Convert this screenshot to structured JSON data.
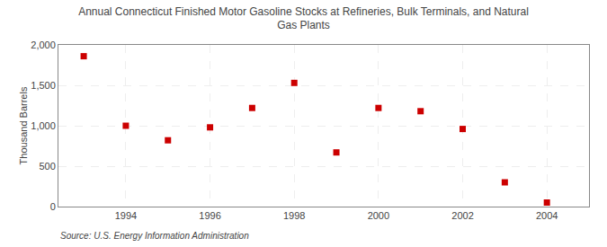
{
  "chart_data": {
    "type": "scatter",
    "title": "Annual Connecticut Finished Motor Gasoline Stocks at Refineries, Bulk Terminals, and Natural\nGas Plants",
    "ylabel": "Thousand Barrels",
    "source": "Source: U.S. Energy Information Administration",
    "x": [
      1993,
      1994,
      1995,
      1996,
      1997,
      1998,
      1999,
      2000,
      2001,
      2002,
      2003,
      2004
    ],
    "values": [
      1860,
      1000,
      820,
      980,
      1220,
      1530,
      670,
      1220,
      1180,
      960,
      300,
      50
    ],
    "color": "#cc0000",
    "marker": "square",
    "xlim": [
      1992.4,
      2005.0
    ],
    "xticks": [
      1994,
      1996,
      1998,
      2000,
      2002,
      2004
    ],
    "ylim": [
      0,
      2000
    ],
    "yticks": [
      0,
      500,
      {
        "value": 1000,
        "label": "1,000"
      },
      {
        "value": 1500,
        "label": "1,500"
      },
      {
        "value": 2000,
        "label": "2,000"
      }
    ],
    "grid": true
  }
}
